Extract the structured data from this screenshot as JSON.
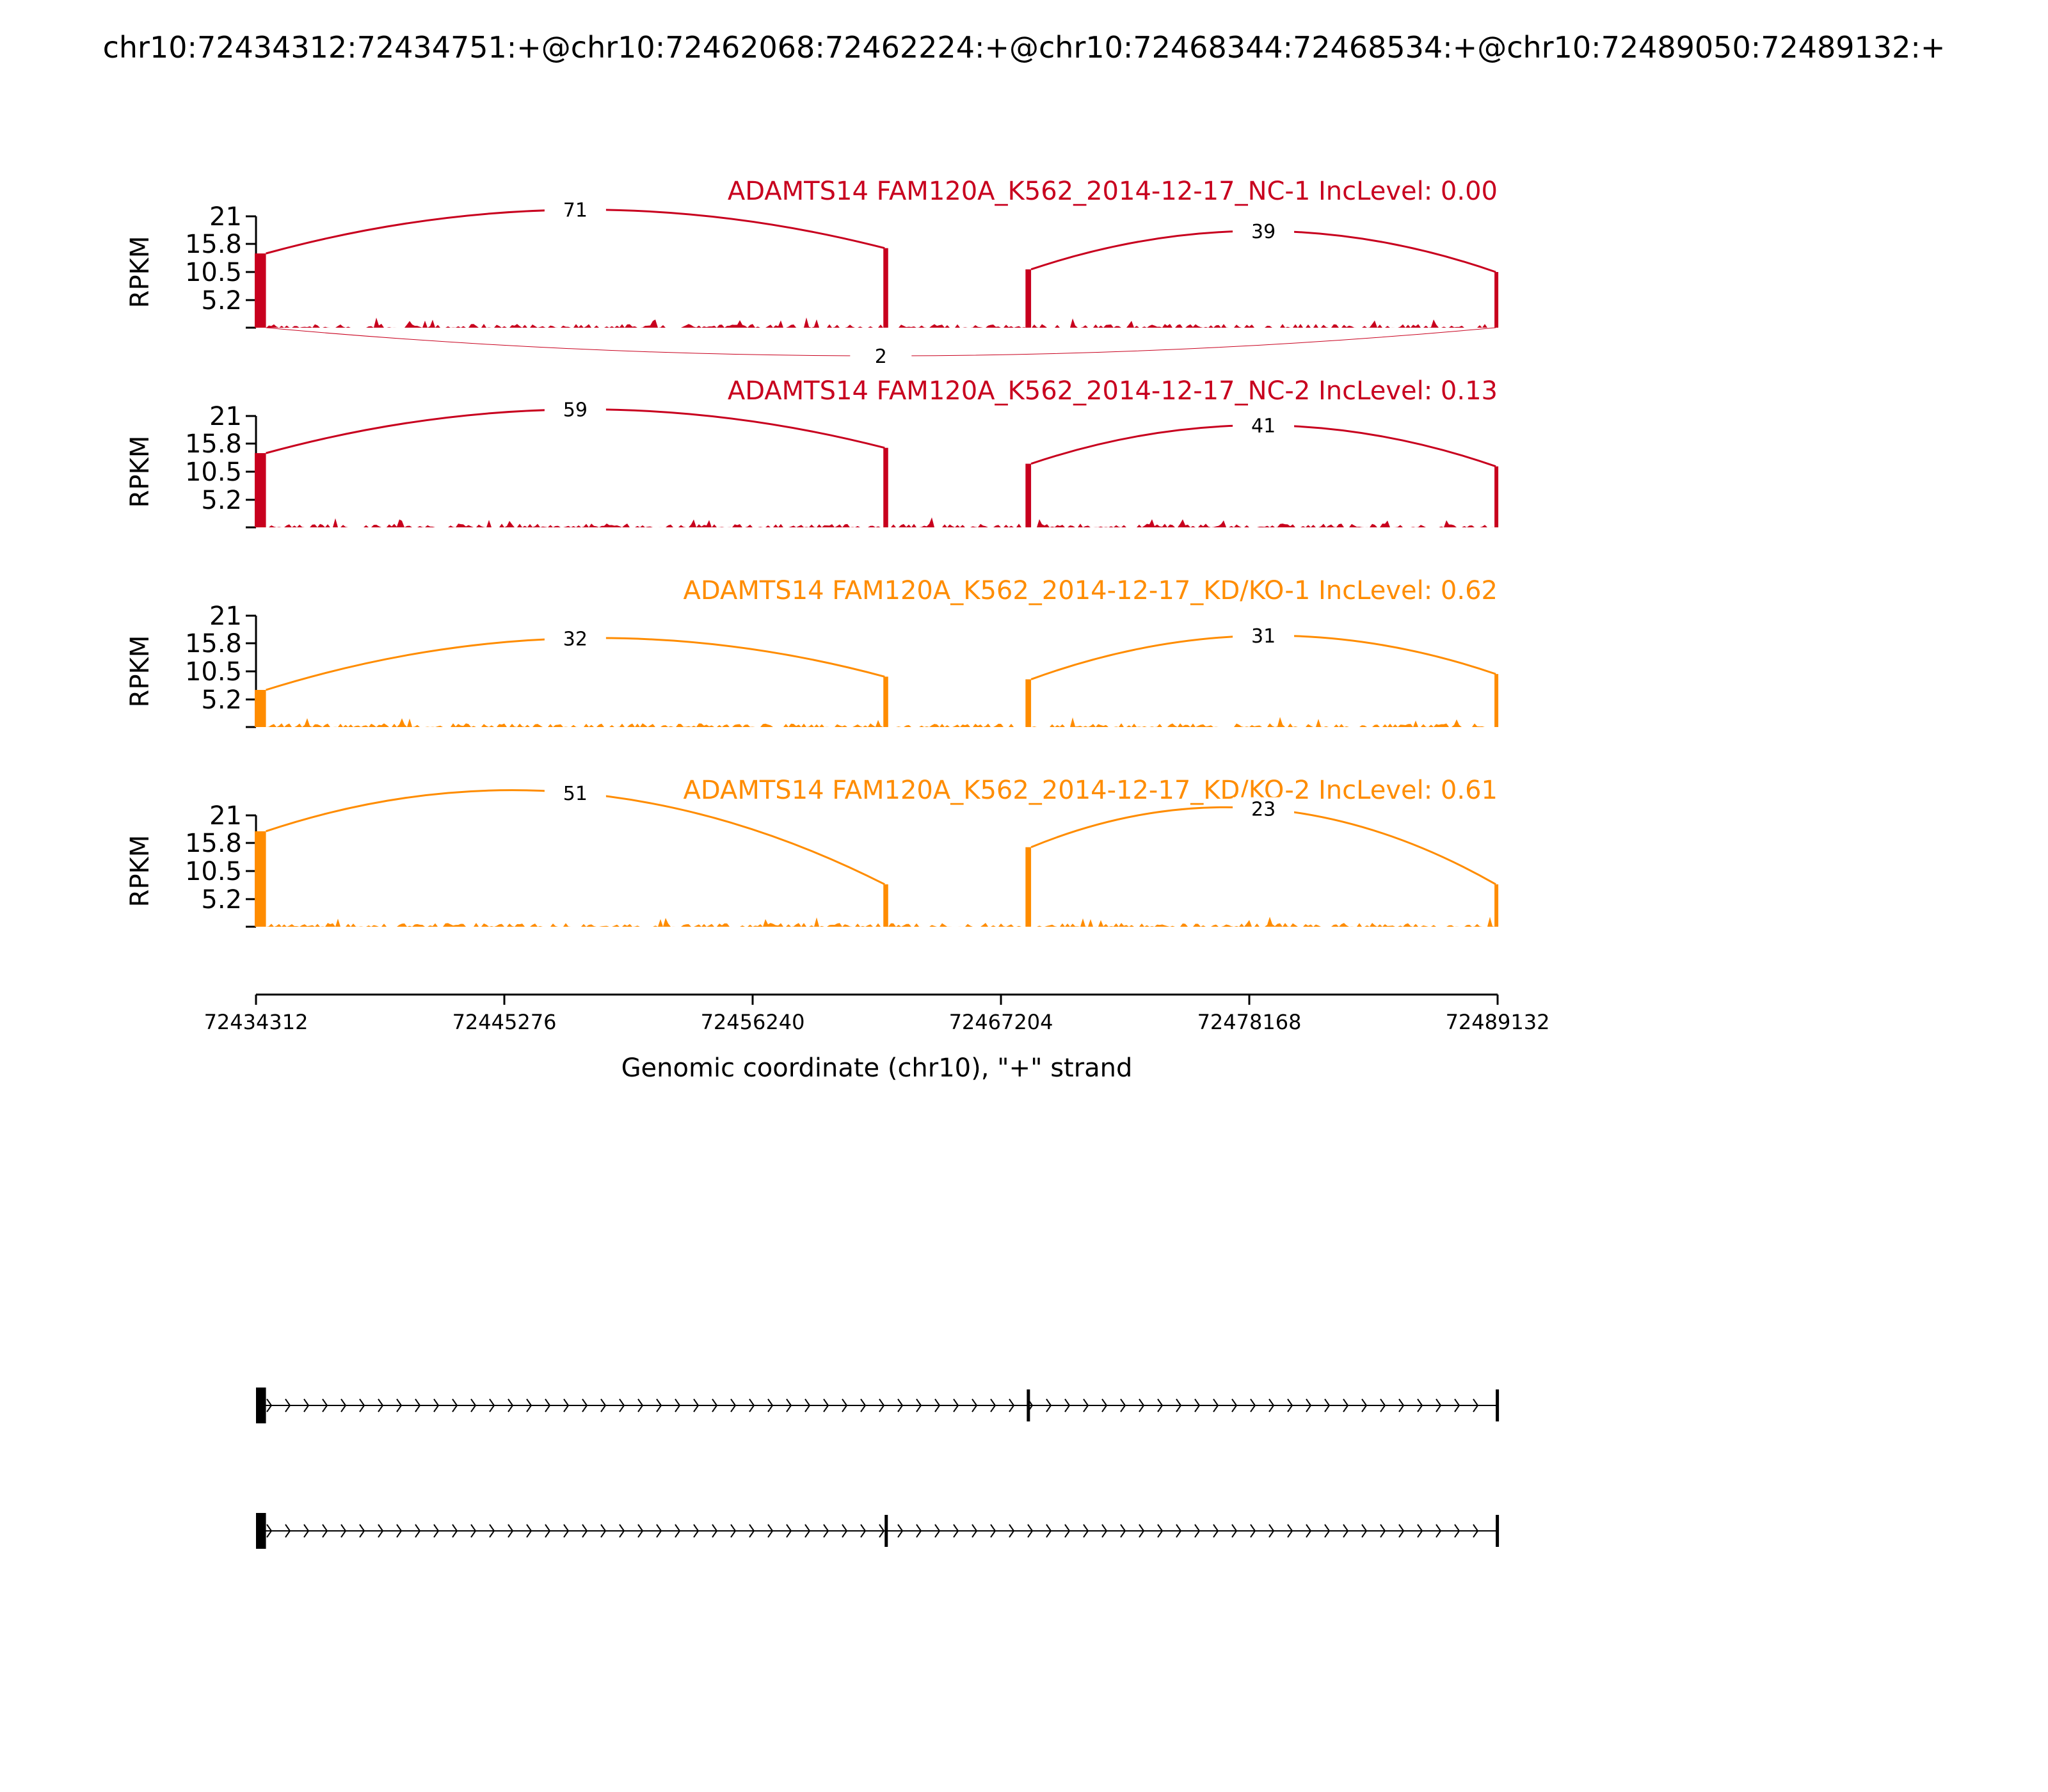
{
  "figure": {
    "title": "chr10:72434312:72434751:+@chr10:72462068:72462224:+@chr10:72468344:72468534:+@chr10:72489050:72489132:+",
    "xlabel": "Genomic coordinate (chr10), \"+\" strand",
    "ylabel": "RPKM"
  },
  "chart_data": {
    "type": "sashimi",
    "xlim": [
      72434312,
      72489132
    ],
    "x_ticks": [
      72434312,
      72445276,
      72456240,
      72467204,
      72478168,
      72489132
    ],
    "x_tick_labels": [
      "72434312",
      "72445276",
      "72456240",
      "72467204",
      "72478168",
      "72489132"
    ],
    "ylim": [
      0,
      21
    ],
    "y_ticks": [
      5.2,
      10.5,
      15.8,
      21
    ],
    "y_tick_labels": [
      "5.2",
      "10.5",
      "15.8",
      "21"
    ],
    "exons": [
      {
        "start": 72434312,
        "end": 72434751
      },
      {
        "start": 72462068,
        "end": 72462224
      },
      {
        "start": 72468344,
        "end": 72468534
      },
      {
        "start": 72489050,
        "end": 72489132
      }
    ],
    "tracks": [
      {
        "name": "ADAMTS14 FAM120A_K562_2014-12-17_NC-1 IncLevel: 0.00",
        "color": "#c8001e",
        "exon_heights": [
          14,
          15,
          11,
          10.5
        ],
        "junctions": [
          {
            "from": 72434751,
            "to": 72462068,
            "count": "71",
            "above": true
          },
          {
            "from": 72468534,
            "to": 72489050,
            "count": "39",
            "above": true
          },
          {
            "from": 72434751,
            "to": 72489050,
            "count": "2",
            "above": false
          }
        ]
      },
      {
        "name": "ADAMTS14 FAM120A_K562_2014-12-17_NC-2 IncLevel: 0.13",
        "color": "#c8001e",
        "exon_heights": [
          14,
          15,
          12,
          11.5
        ],
        "junctions": [
          {
            "from": 72434751,
            "to": 72462068,
            "count": "59",
            "above": true
          },
          {
            "from": 72468534,
            "to": 72489050,
            "count": "41",
            "above": true
          }
        ]
      },
      {
        "name": "ADAMTS14 FAM120A_K562_2014-12-17_KD/KO-1 IncLevel: 0.62",
        "color": "#ff8c00",
        "exon_heights": [
          7,
          9.5,
          9,
          10
        ],
        "junctions": [
          {
            "from": 72434751,
            "to": 72462068,
            "count": "32",
            "above": true
          },
          {
            "from": 72468534,
            "to": 72489050,
            "count": "31",
            "above": true
          }
        ]
      },
      {
        "name": "ADAMTS14 FAM120A_K562_2014-12-17_KD/KO-2 IncLevel: 0.61",
        "color": "#ff8c00",
        "exon_heights": [
          18,
          8,
          15,
          8
        ],
        "junctions": [
          {
            "from": 72434751,
            "to": 72462068,
            "count": "51",
            "above": true
          },
          {
            "from": 72468534,
            "to": 72489050,
            "count": "23",
            "above": true
          }
        ]
      }
    ],
    "isoforms": [
      {
        "exons": [
          [
            72434312,
            72434751
          ],
          [
            72468344,
            72468534
          ],
          [
            72489050,
            72489132
          ]
        ]
      },
      {
        "exons": [
          [
            72434312,
            72434751
          ],
          [
            72462068,
            72462224
          ],
          [
            72489050,
            72489132
          ]
        ]
      }
    ]
  }
}
